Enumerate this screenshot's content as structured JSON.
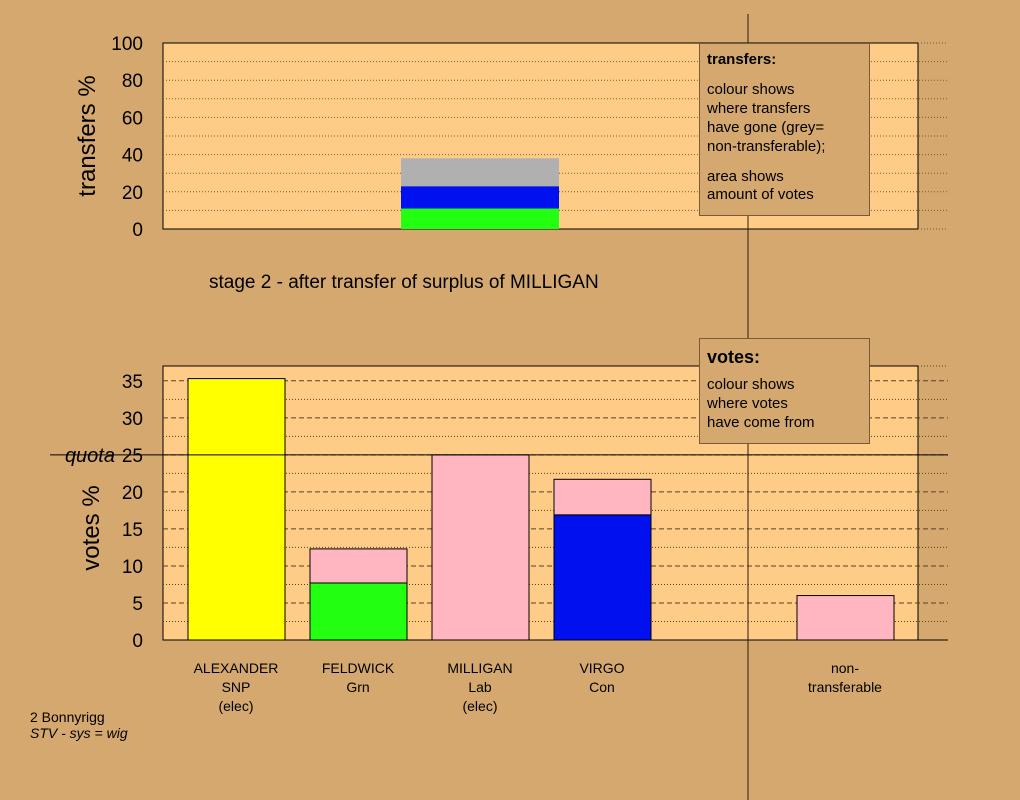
{
  "chart_data": [
    {
      "type": "bar",
      "title": "",
      "ylabel": "transfers %",
      "ylim": [
        0,
        100
      ],
      "yticks": [
        "0",
        "20",
        "40",
        "60",
        "80",
        "100"
      ],
      "stacked": true,
      "source": "MILLIGAN",
      "segments": [
        {
          "color": "#22ff11",
          "value": 11
        },
        {
          "color": "#0010ee",
          "value": 12
        },
        {
          "color": "#b0b0b0",
          "value": 15
        }
      ],
      "legend": {
        "title": "transfers:",
        "lines1": [
          "colour shows",
          "where transfers",
          "have gone (grey=",
          "non-transferable);"
        ],
        "lines2": [
          "area shows",
          "amount of votes"
        ]
      }
    },
    {
      "type": "bar",
      "ylabel": "votes %",
      "ylim": [
        0,
        37
      ],
      "yticks": [
        "0",
        "5",
        "10",
        "15",
        "20",
        "25",
        "30",
        "35"
      ],
      "quota": {
        "label": "quota",
        "value": 25
      },
      "stacked": true,
      "bars": [
        {
          "name": "ALEXANDER",
          "party": "SNP",
          "status": "(elec)",
          "segments": [
            {
              "color": "#ffff00",
              "value": 35.3
            }
          ]
        },
        {
          "name": "FELDWICK",
          "party": "Grn",
          "status": "",
          "segments": [
            {
              "color": "#22ff11",
              "value": 7.7
            },
            {
              "color": "#ffb6c1",
              "value": 4.6
            }
          ]
        },
        {
          "name": "MILLIGAN",
          "party": "Lab",
          "status": "(elec)",
          "segments": [
            {
              "color": "#ffb6c1",
              "value": 25.0
            }
          ]
        },
        {
          "name": "VIRGO",
          "party": "Con",
          "status": "",
          "segments": [
            {
              "color": "#0010ee",
              "value": 16.9
            },
            {
              "color": "#ffb6c1",
              "value": 4.8
            }
          ]
        },
        {
          "name": "non-",
          "party": "transferable",
          "status": "",
          "segments": [
            {
              "color": "#ffb6c1",
              "value": 6.0
            }
          ]
        }
      ],
      "legend": {
        "title": "votes:",
        "lines": [
          "colour shows",
          "where votes",
          "have come from"
        ]
      }
    }
  ],
  "stage_caption": "stage 2 - after transfer of surplus of MILLIGAN",
  "footer": {
    "line1": "2 Bonnyrigg",
    "line2": "STV - sys = wig"
  }
}
